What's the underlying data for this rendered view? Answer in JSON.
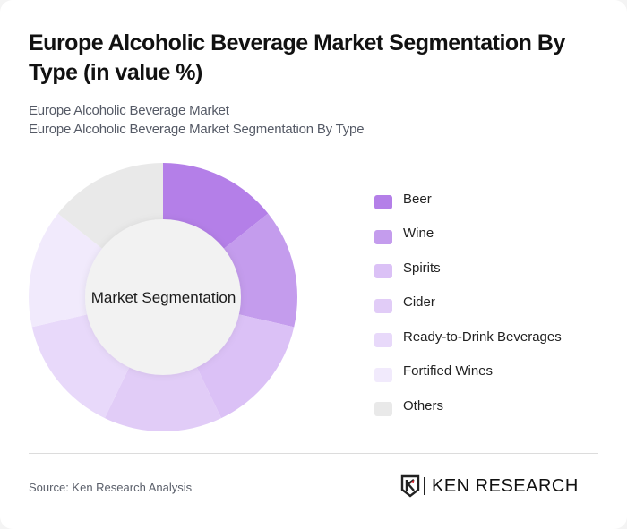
{
  "header": {
    "title": "Europe Alcoholic Beverage Market Segmentation By Type (in value %)",
    "subtitle_line1": "Europe Alcoholic Beverage Market",
    "subtitle_line2": "Europe Alcoholic Beverage Market Segmentation By Type"
  },
  "chart": {
    "center_label": "Market Segmentation"
  },
  "legend": {
    "items": [
      {
        "label": "Beer",
        "color": "#b47fe8"
      },
      {
        "label": "Wine",
        "color": "#c49ced"
      },
      {
        "label": "Spirits",
        "color": "#dbc1f6"
      },
      {
        "label": "Cider",
        "color": "#e1ccf7"
      },
      {
        "label": "Ready-to-Drink Beverages",
        "color": "#e8d9fa"
      },
      {
        "label": "Fortified Wines",
        "color": "#f1eafc"
      },
      {
        "label": "Others",
        "color": "#e9e9e9"
      }
    ]
  },
  "footer": {
    "source": "Source: Ken Research Analysis",
    "logo_text": "KEN RESEARCH",
    "logo_mark": "K"
  },
  "chart_data": {
    "type": "pie",
    "variant": "donut",
    "title": "Europe Alcoholic Beverage Market Segmentation By Type (in value %)",
    "subtitle": "Europe Alcoholic Beverage Market Segmentation By Type",
    "center_label": "Market Segmentation",
    "categories": [
      "Beer",
      "Wine",
      "Spirits",
      "Cider",
      "Ready-to-Drink Beverages",
      "Fortified Wines",
      "Others"
    ],
    "values": [
      14.29,
      14.29,
      14.29,
      14.29,
      14.29,
      14.29,
      14.29
    ],
    "colors": [
      "#b47fe8",
      "#c49ced",
      "#dbc1f6",
      "#e1ccf7",
      "#e8d9fa",
      "#f1eafc",
      "#e9e9e9"
    ],
    "legend_position": "right",
    "start_angle_deg": 0,
    "direction": "clockwise",
    "source": "Source: Ken Research Analysis"
  }
}
